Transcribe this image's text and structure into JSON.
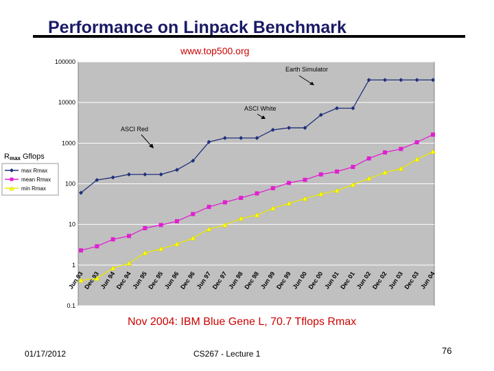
{
  "slide": {
    "title": "Performance on Linpack Benchmark",
    "source": "www.top500.org",
    "caption": "Nov 2004: IBM Blue Gene L, 70.7 Tflops Rmax",
    "date": "01/17/2012",
    "course": "CS267 - Lecture 1",
    "page": "76"
  },
  "chart_data": {
    "type": "line",
    "scale": "log",
    "ylim": [
      0.1,
      100000
    ],
    "yticks": [
      100000,
      10000,
      1000,
      100,
      10,
      1,
      0.1
    ],
    "ytick_labels": [
      "100000",
      "10000",
      "1000",
      "100",
      "10",
      "1",
      "0.1"
    ],
    "ylabel_prefix": "R",
    "ylabel_sub": "max",
    "ylabel_unit": "Gflops",
    "categories": [
      "Jun 93",
      "Dec 93",
      "Jun 94",
      "Dec 94",
      "Jun 95",
      "Dec 95",
      "Jun 96",
      "Dec 96",
      "Jun 97",
      "Dec 97",
      "Jun 98",
      "Dec 98",
      "Jun 99",
      "Dec 99",
      "Jun 00",
      "Dec 00",
      "Jun 01",
      "Dec 01",
      "Jun 02",
      "Dec 02",
      "Jun 03",
      "Dec 03",
      "Jun 04"
    ],
    "series": [
      {
        "name": "max Rmax",
        "color": "#1f2f7a",
        "marker": "diamond",
        "values": [
          60,
          124,
          143,
          170,
          170,
          170,
          220,
          368,
          1068,
          1338,
          1338,
          1338,
          2121,
          2379,
          2379,
          4938,
          7226,
          7226,
          35860,
          35860,
          35860,
          35860,
          35860
        ]
      },
      {
        "name": "mean Rmax",
        "color": "#e020d0",
        "marker": "square",
        "values": [
          2.3,
          2.9,
          4.3,
          5.2,
          8.1,
          9.7,
          12,
          18,
          27,
          35,
          45,
          58,
          78,
          105,
          125,
          170,
          200,
          260,
          420,
          590,
          720,
          1050,
          1620
        ]
      },
      {
        "name": "min Rmax",
        "color": "#ffff00",
        "marker": "triangle",
        "values": [
          0.42,
          0.47,
          0.84,
          1.1,
          2.0,
          2.5,
          3.3,
          4.6,
          7.7,
          9.7,
          14,
          17,
          25,
          33,
          43,
          56,
          68,
          95,
          135,
          190,
          235,
          400,
          620
        ]
      }
    ],
    "annotations": [
      {
        "text": "Earth Simulator"
      },
      {
        "text": "ASCI White"
      },
      {
        "text": "ASCI Red"
      }
    ],
    "legend_position": "left"
  }
}
